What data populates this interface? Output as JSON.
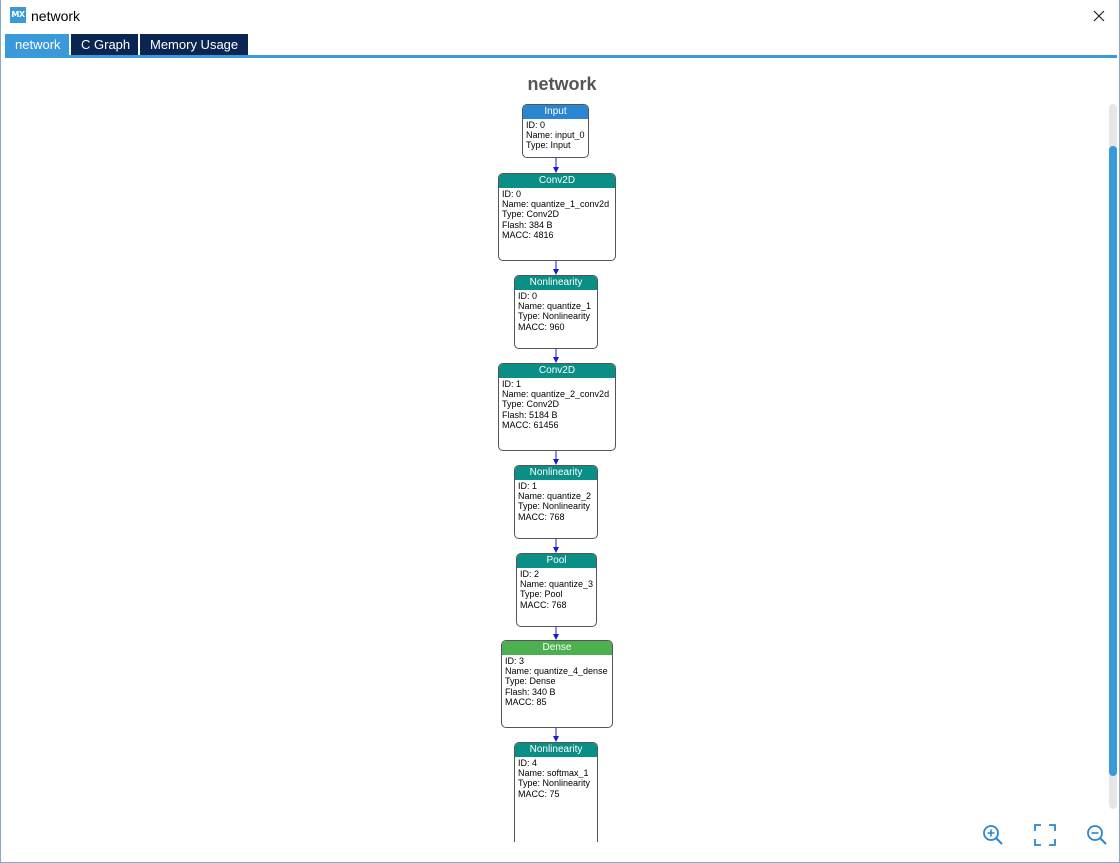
{
  "window": {
    "title": "network",
    "app_icon_text": "MX"
  },
  "tabs": [
    {
      "label": "network",
      "active": true
    },
    {
      "label": "C Graph",
      "active": false
    },
    {
      "label": "Memory Usage",
      "active": false
    }
  ],
  "graph": {
    "title": "network",
    "nodes": [
      {
        "header": "Input",
        "color": "#2a86d0",
        "lines": [
          "ID: 0",
          "Name: input_0",
          "Type: Input"
        ]
      },
      {
        "header": "Conv2D",
        "color": "#0a8f86",
        "lines": [
          "ID: 0",
          "Name: quantize_1_conv2d",
          "Type: Conv2D",
          "Flash: 384 B",
          "MACC: 4816"
        ]
      },
      {
        "header": "Nonlinearity",
        "color": "#0a8f86",
        "lines": [
          "ID: 0",
          "Name: quantize_1",
          "Type: Nonlinearity",
          "MACC: 960"
        ]
      },
      {
        "header": "Conv2D",
        "color": "#0a8f86",
        "lines": [
          "ID: 1",
          "Name: quantize_2_conv2d",
          "Type: Conv2D",
          "Flash: 5184 B",
          "MACC: 61456"
        ]
      },
      {
        "header": "Nonlinearity",
        "color": "#0a8f86",
        "lines": [
          "ID: 1",
          "Name: quantize_2",
          "Type: Nonlinearity",
          "MACC: 768"
        ]
      },
      {
        "header": "Pool",
        "color": "#0a8f86",
        "lines": [
          "ID: 2",
          "Name: quantize_3",
          "Type: Pool",
          "MACC: 768"
        ]
      },
      {
        "header": "Dense",
        "color": "#4caf50",
        "lines": [
          "ID: 3",
          "Name: quantize_4_dense",
          "Type: Dense",
          "Flash: 340 B",
          "MACC: 85"
        ]
      },
      {
        "header": "Nonlinearity",
        "color": "#0a8f86",
        "lines": [
          "ID: 4",
          "Name: softmax_1",
          "Type: Nonlinearity",
          "MACC: 75"
        ]
      }
    ]
  },
  "zoom_controls": [
    {
      "name": "zoom-in-button",
      "icon": "zoom-in-icon"
    },
    {
      "name": "fit-view-button",
      "icon": "fit-screen-icon"
    },
    {
      "name": "zoom-out-button",
      "icon": "zoom-out-icon"
    }
  ],
  "accent_color": "#3a9ad9",
  "tab_color": "#0b2553"
}
